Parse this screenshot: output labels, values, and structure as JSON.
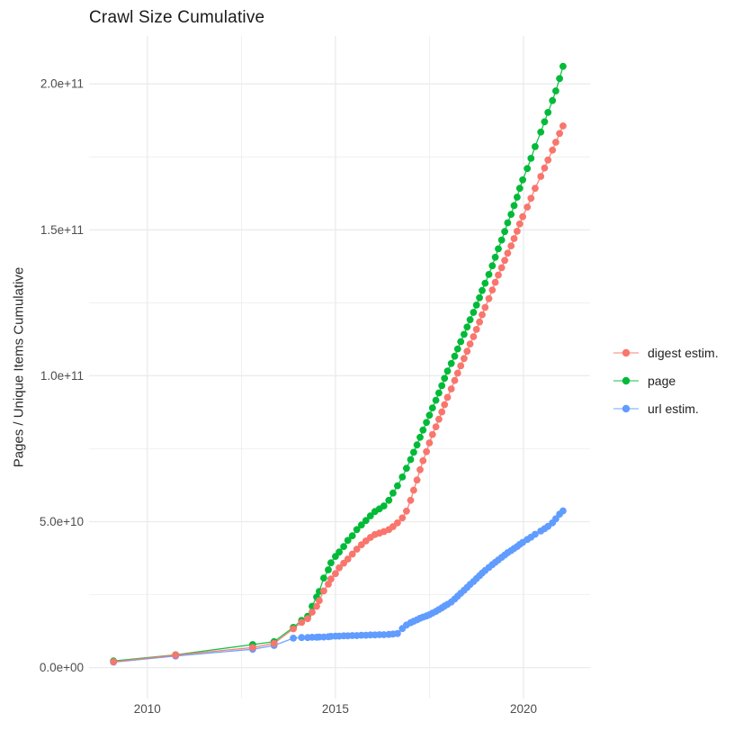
{
  "title": "Crawl Size Cumulative",
  "y_axis_title": "Pages / Unique Items Cumulative",
  "legend": {
    "position": "right",
    "items": [
      {
        "label": "digest estim.",
        "color": "#F8766D"
      },
      {
        "label": "page",
        "color": "#00BA38"
      },
      {
        "label": "url estim.",
        "color": "#619CFF"
      }
    ]
  },
  "colors": {
    "background": "#ffffff",
    "gridline": "#EBEBEB",
    "tick_label": "#4d4d4d",
    "digest": "#F8766D",
    "page": "#00BA38",
    "url": "#619CFF"
  },
  "chart_data": {
    "type": "scatter",
    "title": "Crawl Size Cumulative",
    "xlabel": "",
    "ylabel": "Pages / Unique Items Cumulative",
    "grid": true,
    "legend_position": "right",
    "x_domain": [
      2008.45,
      2021.77
    ],
    "y_domain": [
      -10600000000.0,
      216400000000.0
    ],
    "x_ticks": [
      {
        "value": 2010,
        "label": "2010"
      },
      {
        "value": 2015,
        "label": "2015"
      },
      {
        "value": 2020,
        "label": "2020"
      }
    ],
    "x_minor": [
      2012.5,
      2017.5
    ],
    "y_ticks": [
      {
        "value": 0,
        "label": "0.0e+00"
      },
      {
        "value": 50000000000.0,
        "label": "5.0e+10"
      },
      {
        "value": 100000000000.0,
        "label": "1.0e+11"
      },
      {
        "value": 150000000000.0,
        "label": "1.5e+11"
      },
      {
        "value": 200000000000.0,
        "label": "2.0e+11"
      }
    ],
    "y_minor": [
      25000000000.0,
      75000000000.0,
      125000000000.0,
      175000000000.0
    ],
    "series": [
      {
        "name": "digest estim.",
        "color": "#F8766D",
        "z": 3,
        "points": [
          [
            2009.1,
            2000000000.0
          ],
          [
            2010.75,
            4300000000.0
          ],
          [
            2012.8,
            6900000000.0
          ],
          [
            2013.37,
            8300000000.0
          ],
          [
            2013.88,
            13300000000.0
          ],
          [
            2014.1,
            15500000000.0
          ],
          [
            2014.26,
            16800000000.0
          ],
          [
            2014.38,
            19000000000.0
          ],
          [
            2014.5,
            21000000000.0
          ],
          [
            2014.57,
            23000000000.0
          ],
          [
            2014.69,
            26300000000.0
          ],
          [
            2014.81,
            28600000000.0
          ],
          [
            2014.88,
            30400000000.0
          ],
          [
            2015.0,
            32200000000.0
          ],
          [
            2015.1,
            34200000000.0
          ],
          [
            2015.22,
            35800000000.0
          ],
          [
            2015.33,
            37200000000.0
          ],
          [
            2015.45,
            38900000000.0
          ],
          [
            2015.57,
            40600000000.0
          ],
          [
            2015.69,
            42100000000.0
          ],
          [
            2015.81,
            43400000000.0
          ],
          [
            2015.93,
            44600000000.0
          ],
          [
            2016.05,
            45600000000.0
          ],
          [
            2016.17,
            46100000000.0
          ],
          [
            2016.29,
            46600000000.0
          ],
          [
            2016.42,
            47300000000.0
          ],
          [
            2016.53,
            48300000000.0
          ],
          [
            2016.65,
            49600000000.0
          ],
          [
            2016.78,
            51300000000.0
          ],
          [
            2016.89,
            53600000000.0
          ],
          [
            2017.0,
            57300000000.0
          ],
          [
            2017.08,
            60800000000.0
          ],
          [
            2017.17,
            64300000000.0
          ],
          [
            2017.25,
            67800000000.0
          ],
          [
            2017.33,
            70900000000.0
          ],
          [
            2017.42,
            74000000000.0
          ],
          [
            2017.5,
            77000000000.0
          ],
          [
            2017.58,
            79900000000.0
          ],
          [
            2017.67,
            82500000000.0
          ],
          [
            2017.75,
            85100000000.0
          ],
          [
            2017.83,
            87600000000.0
          ],
          [
            2017.9,
            90100000000.0
          ],
          [
            2017.98,
            92600000000.0
          ],
          [
            2018.08,
            95500000000.0
          ],
          [
            2018.17,
            98400000000.0
          ],
          [
            2018.25,
            100900000000.0
          ],
          [
            2018.33,
            103400000000.0
          ],
          [
            2018.42,
            105900000000.0
          ],
          [
            2018.5,
            108400000000.0
          ],
          [
            2018.58,
            110900000000.0
          ],
          [
            2018.67,
            113400000000.0
          ],
          [
            2018.75,
            115900000000.0
          ],
          [
            2018.83,
            118400000000.0
          ],
          [
            2018.9,
            120900000000.0
          ],
          [
            2018.98,
            123400000000.0
          ],
          [
            2019.08,
            126400000000.0
          ],
          [
            2019.17,
            129400000000.0
          ],
          [
            2019.25,
            132000000000.0
          ],
          [
            2019.33,
            134500000000.0
          ],
          [
            2019.42,
            137000000000.0
          ],
          [
            2019.5,
            139500000000.0
          ],
          [
            2019.58,
            142000000000.0
          ],
          [
            2019.67,
            144500000000.0
          ],
          [
            2019.75,
            147000000000.0
          ],
          [
            2019.83,
            149500000000.0
          ],
          [
            2019.9,
            152000000000.0
          ],
          [
            2019.98,
            154500000000.0
          ],
          [
            2020.1,
            157800000000.0
          ],
          [
            2020.2,
            160800000000.0
          ],
          [
            2020.31,
            164200000000.0
          ],
          [
            2020.46,
            168300000000.0
          ],
          [
            2020.56,
            171200000000.0
          ],
          [
            2020.65,
            173900000000.0
          ],
          [
            2020.77,
            177300000000.0
          ],
          [
            2020.86,
            180000000000.0
          ],
          [
            2020.96,
            183000000000.0
          ],
          [
            2021.05,
            185600000000.0
          ]
        ]
      },
      {
        "name": "page",
        "color": "#00BA38",
        "z": 1,
        "points": [
          [
            2009.1,
            2300000000.0
          ],
          [
            2010.75,
            4400000000.0
          ],
          [
            2012.8,
            7900000000.0
          ],
          [
            2013.37,
            8900000000.0
          ],
          [
            2013.88,
            13800000000.0
          ],
          [
            2014.1,
            16200000000.0
          ],
          [
            2014.26,
            17600000000.0
          ],
          [
            2014.38,
            21000000000.0
          ],
          [
            2014.5,
            24200000000.0
          ],
          [
            2014.57,
            26100000000.0
          ],
          [
            2014.69,
            30700000000.0
          ],
          [
            2014.81,
            33500000000.0
          ],
          [
            2014.88,
            35900000000.0
          ],
          [
            2015.0,
            38100000000.0
          ],
          [
            2015.1,
            39600000000.0
          ],
          [
            2015.22,
            41500000000.0
          ],
          [
            2015.33,
            43600000000.0
          ],
          [
            2015.45,
            45200000000.0
          ],
          [
            2015.57,
            47300000000.0
          ],
          [
            2015.69,
            48900000000.0
          ],
          [
            2015.81,
            50400000000.0
          ],
          [
            2015.93,
            52000000000.0
          ],
          [
            2016.05,
            53500000000.0
          ],
          [
            2016.17,
            54400000000.0
          ],
          [
            2016.29,
            55400000000.0
          ],
          [
            2016.42,
            57300000000.0
          ],
          [
            2016.53,
            59800000000.0
          ],
          [
            2016.65,
            62300000000.0
          ],
          [
            2016.78,
            65300000000.0
          ],
          [
            2016.89,
            68300000000.0
          ],
          [
            2017.0,
            71300000000.0
          ],
          [
            2017.08,
            73800000000.0
          ],
          [
            2017.17,
            76300000000.0
          ],
          [
            2017.25,
            78900000000.0
          ],
          [
            2017.33,
            81400000000.0
          ],
          [
            2017.42,
            84000000000.0
          ],
          [
            2017.5,
            86500000000.0
          ],
          [
            2017.58,
            89000000000.0
          ],
          [
            2017.67,
            91600000000.0
          ],
          [
            2017.75,
            94100000000.0
          ],
          [
            2017.83,
            96600000000.0
          ],
          [
            2017.9,
            99100000000.0
          ],
          [
            2017.98,
            101600000000.0
          ],
          [
            2018.08,
            104200000000.0
          ],
          [
            2018.17,
            106700000000.0
          ],
          [
            2018.25,
            109200000000.0
          ],
          [
            2018.33,
            111700000000.0
          ],
          [
            2018.42,
            114200000000.0
          ],
          [
            2018.5,
            116700000000.0
          ],
          [
            2018.58,
            119200000000.0
          ],
          [
            2018.67,
            121700000000.0
          ],
          [
            2018.75,
            124200000000.0
          ],
          [
            2018.83,
            126700000000.0
          ],
          [
            2018.9,
            129200000000.0
          ],
          [
            2018.98,
            131700000000.0
          ],
          [
            2019.08,
            134700000000.0
          ],
          [
            2019.17,
            137700000000.0
          ],
          [
            2019.25,
            140600000000.0
          ],
          [
            2019.33,
            143500000000.0
          ],
          [
            2019.42,
            146500000000.0
          ],
          [
            2019.5,
            149400000000.0
          ],
          [
            2019.58,
            152400000000.0
          ],
          [
            2019.67,
            155300000000.0
          ],
          [
            2019.75,
            158300000000.0
          ],
          [
            2019.83,
            161200000000.0
          ],
          [
            2019.9,
            164200000000.0
          ],
          [
            2019.98,
            167100000000.0
          ],
          [
            2020.1,
            171000000000.0
          ],
          [
            2020.2,
            174500000000.0
          ],
          [
            2020.31,
            178500000000.0
          ],
          [
            2020.46,
            183500000000.0
          ],
          [
            2020.56,
            187000000000.0
          ],
          [
            2020.65,
            190200000000.0
          ],
          [
            2020.77,
            194300000000.0
          ],
          [
            2020.86,
            197600000000.0
          ],
          [
            2020.96,
            201800000000.0
          ],
          [
            2021.05,
            206000000000.0
          ]
        ]
      },
      {
        "name": "url estim.",
        "color": "#619CFF",
        "z": 2,
        "points": [
          [
            2009.1,
            1900000000.0
          ],
          [
            2010.75,
            4000000000.0
          ],
          [
            2012.8,
            6300000000.0
          ],
          [
            2013.37,
            7600000000.0
          ],
          [
            2013.88,
            10100000000.0
          ],
          [
            2014.1,
            10300000000.0
          ],
          [
            2014.26,
            10300000000.0
          ],
          [
            2014.38,
            10400000000.0
          ],
          [
            2014.5,
            10400000000.0
          ],
          [
            2014.57,
            10500000000.0
          ],
          [
            2014.69,
            10500000000.0
          ],
          [
            2014.81,
            10600000000.0
          ],
          [
            2014.88,
            10700000000.0
          ],
          [
            2015.0,
            10800000000.0
          ],
          [
            2015.1,
            10800000000.0
          ],
          [
            2015.22,
            10900000000.0
          ],
          [
            2015.33,
            10900000000.0
          ],
          [
            2015.45,
            11000000000.0
          ],
          [
            2015.57,
            11000000000.0
          ],
          [
            2015.69,
            11100000000.0
          ],
          [
            2015.81,
            11100000000.0
          ],
          [
            2015.93,
            11200000000.0
          ],
          [
            2016.05,
            11200000000.0
          ],
          [
            2016.17,
            11300000000.0
          ],
          [
            2016.29,
            11300000000.0
          ],
          [
            2016.42,
            11400000000.0
          ],
          [
            2016.53,
            11500000000.0
          ],
          [
            2016.65,
            11700000000.0
          ],
          [
            2016.78,
            13400000000.0
          ],
          [
            2016.89,
            14600000000.0
          ],
          [
            2017.0,
            15400000000.0
          ],
          [
            2017.08,
            15900000000.0
          ],
          [
            2017.17,
            16400000000.0
          ],
          [
            2017.25,
            16900000000.0
          ],
          [
            2017.33,
            17300000000.0
          ],
          [
            2017.42,
            17700000000.0
          ],
          [
            2017.5,
            18100000000.0
          ],
          [
            2017.58,
            18700000000.0
          ],
          [
            2017.67,
            19300000000.0
          ],
          [
            2017.75,
            19900000000.0
          ],
          [
            2017.83,
            20500000000.0
          ],
          [
            2017.9,
            21100000000.0
          ],
          [
            2017.98,
            21700000000.0
          ],
          [
            2018.08,
            22500000000.0
          ],
          [
            2018.17,
            23500000000.0
          ],
          [
            2018.25,
            24500000000.0
          ],
          [
            2018.33,
            25500000000.0
          ],
          [
            2018.42,
            26500000000.0
          ],
          [
            2018.5,
            27500000000.0
          ],
          [
            2018.58,
            28500000000.0
          ],
          [
            2018.67,
            29500000000.0
          ],
          [
            2018.75,
            30500000000.0
          ],
          [
            2018.83,
            31500000000.0
          ],
          [
            2018.9,
            32400000000.0
          ],
          [
            2018.98,
            33300000000.0
          ],
          [
            2019.08,
            34300000000.0
          ],
          [
            2019.17,
            35300000000.0
          ],
          [
            2019.25,
            36100000000.0
          ],
          [
            2019.33,
            36900000000.0
          ],
          [
            2019.42,
            37800000000.0
          ],
          [
            2019.5,
            38600000000.0
          ],
          [
            2019.58,
            39400000000.0
          ],
          [
            2019.67,
            40100000000.0
          ],
          [
            2019.75,
            40800000000.0
          ],
          [
            2019.83,
            41500000000.0
          ],
          [
            2019.9,
            42200000000.0
          ],
          [
            2019.98,
            42900000000.0
          ],
          [
            2020.1,
            43900000000.0
          ],
          [
            2020.2,
            44700000000.0
          ],
          [
            2020.31,
            45700000000.0
          ],
          [
            2020.46,
            46800000000.0
          ],
          [
            2020.56,
            47600000000.0
          ],
          [
            2020.65,
            48400000000.0
          ],
          [
            2020.77,
            49600000000.0
          ],
          [
            2020.86,
            51000000000.0
          ],
          [
            2020.96,
            52600000000.0
          ],
          [
            2021.05,
            53700000000.0
          ]
        ]
      }
    ]
  }
}
